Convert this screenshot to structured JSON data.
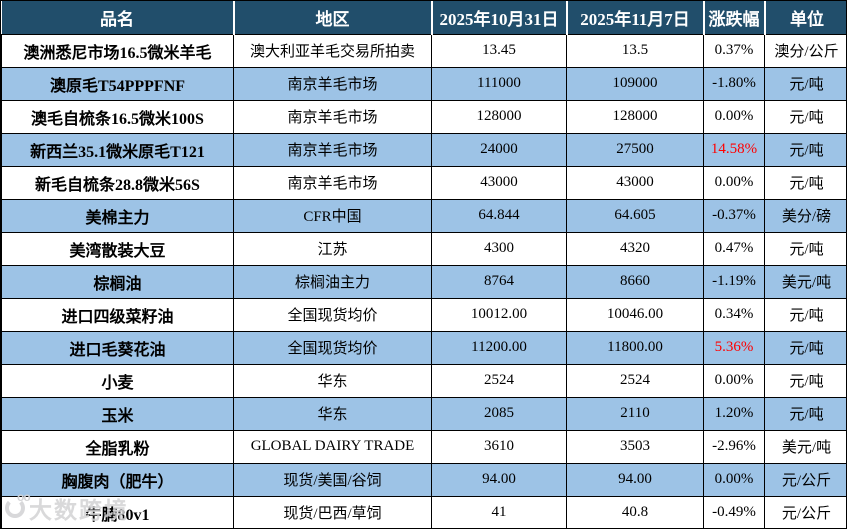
{
  "table": {
    "colors": {
      "header_bg": "#214E6B",
      "alt_row_bg": "#9DC3E6",
      "row_bg": "#FFFFFF",
      "grid": "#000000",
      "header_text": "#FFFFFF",
      "text": "#000000",
      "highlight_red": "#FF0000"
    },
    "columns": [
      {
        "key": "name",
        "label": "品名"
      },
      {
        "key": "region",
        "label": "地区"
      },
      {
        "key": "date1",
        "label": "2025年10月31日"
      },
      {
        "key": "date2",
        "label": "2025年11月7日"
      },
      {
        "key": "change",
        "label": "涨跌幅"
      },
      {
        "key": "unit",
        "label": "单位"
      }
    ],
    "rows": [
      {
        "name": "澳洲悉尼市场16.5微米羊毛",
        "region": "澳大利亚羊毛交易所拍卖",
        "date1": "13.45",
        "date2": "13.5",
        "change": "0.37%",
        "unit": "澳分/公斤",
        "highlight": false
      },
      {
        "name": "澳原毛T54PPPFNF",
        "region": "南京羊毛市场",
        "date1": "111000",
        "date2": "109000",
        "change": "-1.80%",
        "unit": "元/吨",
        "highlight": false
      },
      {
        "name": "澳毛自梳条16.5微米100S",
        "region": "南京羊毛市场",
        "date1": "128000",
        "date2": "128000",
        "change": "0.00%",
        "unit": "元/吨",
        "highlight": false
      },
      {
        "name": "新西兰35.1微米原毛T121",
        "region": "南京羊毛市场",
        "date1": "24000",
        "date2": "27500",
        "change": "14.58%",
        "unit": "元/吨",
        "highlight": true
      },
      {
        "name": "新毛自梳条28.8微米56S",
        "region": "南京羊毛市场",
        "date1": "43000",
        "date2": "43000",
        "change": "0.00%",
        "unit": "元/吨",
        "highlight": false
      },
      {
        "name": "美棉主力",
        "region": "CFR中国",
        "date1": "64.844",
        "date2": "64.605",
        "change": "-0.37%",
        "unit": "美分/磅",
        "highlight": false
      },
      {
        "name": "美湾散装大豆",
        "region": "江苏",
        "date1": "4300",
        "date2": "4320",
        "change": "0.47%",
        "unit": "元/吨",
        "highlight": false
      },
      {
        "name": "棕榈油",
        "region": "棕榈油主力",
        "date1": "8764",
        "date2": "8660",
        "change": "-1.19%",
        "unit": "美元/吨",
        "highlight": false
      },
      {
        "name": "进口四级菜籽油",
        "region": "全国现货均价",
        "date1": "10012.00",
        "date2": "10046.00",
        "change": "0.34%",
        "unit": "元/吨",
        "highlight": false
      },
      {
        "name": "进口毛葵花油",
        "region": "全国现货均价",
        "date1": "11200.00",
        "date2": "11800.00",
        "change": "5.36%",
        "unit": "元/吨",
        "highlight": true
      },
      {
        "name": "小麦",
        "region": "华东",
        "date1": "2524",
        "date2": "2524",
        "change": "0.00%",
        "unit": "元/吨",
        "highlight": false
      },
      {
        "name": "玉米",
        "region": "华东",
        "date1": "2085",
        "date2": "2110",
        "change": "1.20%",
        "unit": "元/吨",
        "highlight": false
      },
      {
        "name": "全脂乳粉",
        "region": "GLOBAL DAIRY TRADE",
        "date1": "3610",
        "date2": "3503",
        "change": "-2.96%",
        "unit": "美元/吨",
        "highlight": false
      },
      {
        "name": "胸腹肉（肥牛）",
        "region": "现货/美国/谷饲",
        "date1": "94.00",
        "date2": "94.00",
        "change": "0.00%",
        "unit": "元/公斤",
        "highlight": false
      },
      {
        "name": "牛腩80v1",
        "region": "现货/巴西/草饲",
        "date1": "41",
        "date2": "40.8",
        "change": "-0.49%",
        "unit": "元/公斤",
        "highlight": false
      }
    ]
  },
  "watermark": {
    "text": "大数跨境",
    "logo": "100-ring-logo"
  }
}
